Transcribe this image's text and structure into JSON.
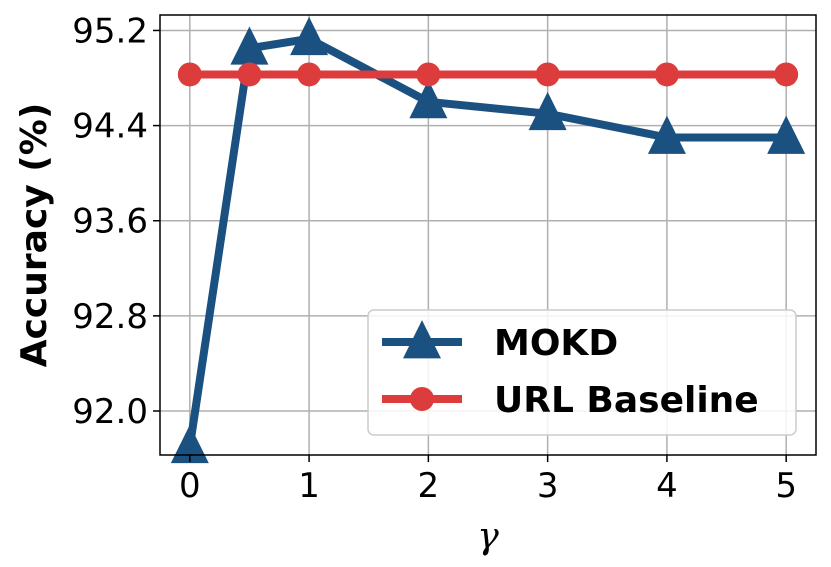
{
  "chart_data": {
    "type": "line",
    "xlabel": "γ",
    "ylabel": "Accuracy (%)",
    "x": [
      0,
      0.5,
      1,
      2,
      3,
      4,
      5
    ],
    "x_ticks": [
      0,
      1,
      2,
      3,
      4,
      5
    ],
    "x_tick_labels": [
      "0",
      "1",
      "2",
      "3",
      "4",
      "5"
    ],
    "y_ticks": [
      92.0,
      92.8,
      93.6,
      94.4,
      95.2
    ],
    "y_tick_labels": [
      "92.0",
      "92.8",
      "93.6",
      "94.4",
      "95.2"
    ],
    "xlim": [
      -0.25,
      5.25
    ],
    "ylim": [
      91.63,
      95.33
    ],
    "grid": true,
    "legend_position": "lower-right",
    "series": [
      {
        "name": "MOKD",
        "color": "#1a5180",
        "marker": "triangle",
        "values": [
          91.7,
          95.05,
          95.13,
          94.6,
          94.5,
          94.3,
          94.3
        ]
      },
      {
        "name": "URL Baseline",
        "color": "#dc3c3c",
        "marker": "circle",
        "values": [
          94.83,
          94.83,
          94.83,
          94.83,
          94.83,
          94.83,
          94.83
        ]
      }
    ]
  }
}
